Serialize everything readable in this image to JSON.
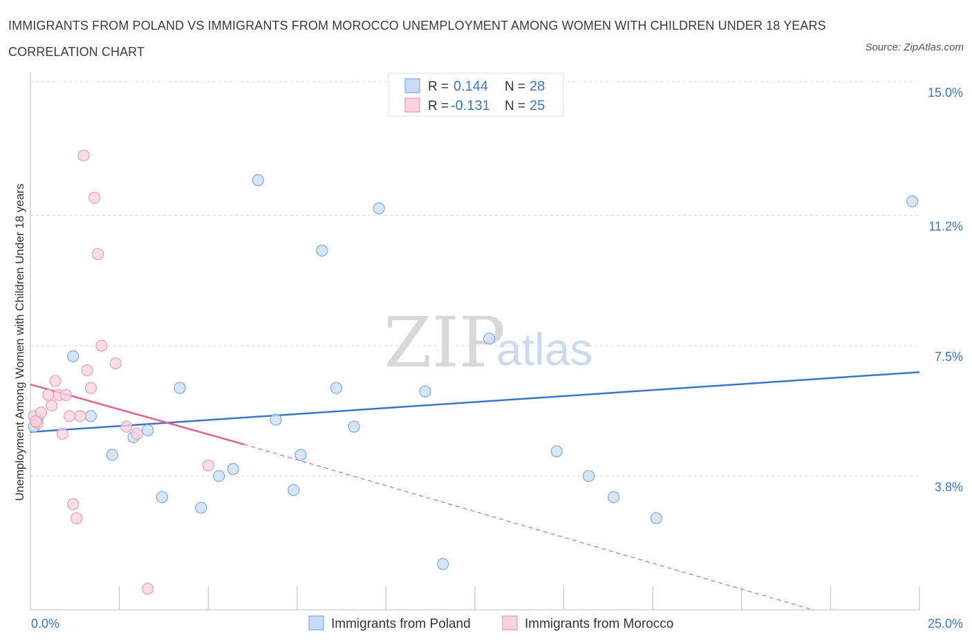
{
  "title": "IMMIGRANTS FROM POLAND VS IMMIGRANTS FROM MOROCCO UNEMPLOYMENT AMONG WOMEN WITH CHILDREN UNDER 18 YEARS CORRELATION CHART",
  "source": "Source: ZipAtlas.com",
  "watermark": {
    "zip": "ZIP",
    "atlas": "atlas"
  },
  "legend_box": {
    "rows": [
      {
        "r_label": "R =",
        "r_value": "0.144",
        "n_label": "N =",
        "n_value": "28"
      },
      {
        "r_label": "R =",
        "r_value": "-0.131",
        "n_label": "N =",
        "n_value": "25"
      }
    ]
  },
  "chart_data": {
    "type": "scatter",
    "title": "IMMIGRANTS FROM POLAND VS IMMIGRANTS FROM MOROCCO UNEMPLOYMENT AMONG WOMEN WITH CHILDREN UNDER 18 YEARS CORRELATION CHART",
    "xlabel": "",
    "ylabel": "Unemployment Among Women with Children Under 18 years",
    "xlim": [
      0,
      25
    ],
    "ylim": [
      0,
      15
    ],
    "x_tick_labels": [
      {
        "value": 0,
        "label": "0.0%"
      },
      {
        "value": 25,
        "label": "25.0%"
      }
    ],
    "y_tick_labels": [
      {
        "value": 15.0,
        "label": "15.0%"
      },
      {
        "value": 11.2,
        "label": "11.2%"
      },
      {
        "value": 7.5,
        "label": "7.5%"
      },
      {
        "value": 3.8,
        "label": "3.8%"
      }
    ],
    "grid": true,
    "legend_position": "bottom-center",
    "series": [
      {
        "name": "Immigrants from Poland",
        "color": "#7aaae6",
        "fill": "#c9dcf6",
        "line_color": "#3a76c4",
        "r": 0.144,
        "n": 28,
        "points": [
          [
            0.1,
            5.2
          ],
          [
            0.2,
            5.4
          ],
          [
            1.2,
            7.2
          ],
          [
            1.7,
            5.5
          ],
          [
            2.3,
            4.4
          ],
          [
            2.9,
            4.9
          ],
          [
            3.3,
            5.1
          ],
          [
            3.7,
            3.2
          ],
          [
            4.2,
            6.3
          ],
          [
            4.8,
            2.9
          ],
          [
            5.3,
            3.8
          ],
          [
            5.7,
            4.0
          ],
          [
            6.4,
            12.2
          ],
          [
            6.9,
            5.4
          ],
          [
            7.4,
            3.4
          ],
          [
            7.6,
            4.4
          ],
          [
            8.2,
            10.2
          ],
          [
            8.6,
            6.3
          ],
          [
            9.1,
            5.2
          ],
          [
            9.8,
            11.4
          ],
          [
            11.1,
            6.2
          ],
          [
            11.6,
            1.3
          ],
          [
            12.9,
            7.7
          ],
          [
            14.8,
            4.5
          ],
          [
            15.7,
            3.8
          ],
          [
            16.4,
            3.2
          ],
          [
            17.6,
            2.6
          ],
          [
            24.8,
            11.6
          ]
        ],
        "trend": {
          "x": [
            0,
            25
          ],
          "y": [
            5.05,
            6.75
          ],
          "style": "solid"
        }
      },
      {
        "name": "Immigrants from Morocco",
        "color": "#ee9ab4",
        "fill": "#f9d2de",
        "line_color": "#e0628d",
        "r": -0.131,
        "n": 25,
        "points": [
          [
            0.1,
            5.5
          ],
          [
            0.2,
            5.3
          ],
          [
            0.3,
            5.6
          ],
          [
            0.5,
            6.1
          ],
          [
            0.6,
            5.8
          ],
          [
            0.7,
            6.5
          ],
          [
            0.8,
            6.1
          ],
          [
            0.9,
            5.0
          ],
          [
            1.0,
            6.1
          ],
          [
            1.1,
            5.5
          ],
          [
            1.2,
            3.0
          ],
          [
            1.3,
            2.6
          ],
          [
            1.4,
            5.5
          ],
          [
            1.5,
            12.9
          ],
          [
            1.6,
            6.8
          ],
          [
            1.7,
            6.3
          ],
          [
            1.8,
            11.7
          ],
          [
            1.9,
            10.1
          ],
          [
            2.0,
            7.5
          ],
          [
            2.4,
            7.0
          ],
          [
            2.7,
            5.2
          ],
          [
            3.0,
            5.0
          ],
          [
            3.3,
            0.6
          ],
          [
            5.0,
            4.1
          ],
          [
            0.15,
            5.35
          ]
        ],
        "trend_solid": {
          "x": [
            0,
            6.0
          ],
          "y": [
            6.4,
            4.7
          ]
        },
        "trend_dashed": {
          "x": [
            6.0,
            22.0
          ],
          "y": [
            4.7,
            0.0
          ]
        }
      }
    ]
  }
}
